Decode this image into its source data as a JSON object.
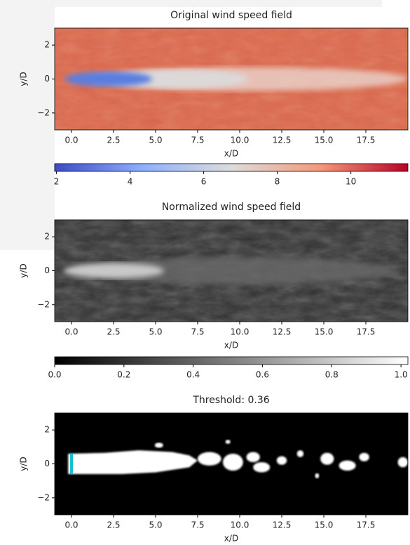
{
  "chart_data": [
    {
      "type": "image",
      "title": "Original wind speed field",
      "xlabel": "x/D",
      "ylabel": "y/D",
      "xlim": [
        -1,
        20
      ],
      "ylim": [
        -3,
        3
      ],
      "xticks": [
        {
          "value": 0,
          "label": "0.0"
        },
        {
          "value": 2.5,
          "label": "2.5"
        },
        {
          "value": 5,
          "label": "5.0"
        },
        {
          "value": 7.5,
          "label": "7.5"
        },
        {
          "value": 10,
          "label": "10.0"
        },
        {
          "value": 12.5,
          "label": "12.5"
        },
        {
          "value": 15,
          "label": "15.0"
        },
        {
          "value": 17.5,
          "label": "17.5"
        }
      ],
      "yticks": [
        {
          "value": 2,
          "label": "2"
        },
        {
          "value": 0,
          "label": "0"
        },
        {
          "value": -2,
          "label": "−2"
        }
      ],
      "colorbar": {
        "lim": [
          1.95,
          11.55
        ],
        "ticks": [
          2,
          4,
          6,
          8,
          10
        ],
        "colormap": [
          "#3b4cc0",
          "#8db0fe",
          "#dddcdc",
          "#f49a7b",
          "#b40426"
        ]
      }
    },
    {
      "type": "image",
      "title": "Normalized wind speed field",
      "xlabel": "x/D",
      "ylabel": "y/D",
      "xlim": [
        -1,
        20
      ],
      "ylim": [
        -3,
        3
      ],
      "xticks": [
        {
          "value": 0,
          "label": "0.0"
        },
        {
          "value": 2.5,
          "label": "2.5"
        },
        {
          "value": 5,
          "label": "5.0"
        },
        {
          "value": 7.5,
          "label": "7.5"
        },
        {
          "value": 10,
          "label": "10.0"
        },
        {
          "value": 12.5,
          "label": "12.5"
        },
        {
          "value": 15,
          "label": "15.0"
        },
        {
          "value": 17.5,
          "label": "17.5"
        }
      ],
      "yticks": [
        {
          "value": 2,
          "label": "2"
        },
        {
          "value": 0,
          "label": "0"
        },
        {
          "value": -2,
          "label": "−2"
        }
      ],
      "colorbar": {
        "lim": [
          0,
          1.02
        ],
        "ticks": [
          {
            "value": 0,
            "label": "0.0"
          },
          0.2,
          0.4,
          0.6,
          0.8,
          {
            "value": 1,
            "label": "1.0"
          }
        ],
        "colormap": [
          "#000000",
          "#ffffff"
        ]
      }
    },
    {
      "type": "image",
      "title": "Threshold: 0.36",
      "xlabel": "x/D",
      "ylabel": "y/D",
      "xlim": [
        -1,
        20
      ],
      "ylim": [
        -3,
        3
      ],
      "xticks": [
        {
          "value": 0,
          "label": "0.0"
        },
        {
          "value": 2.5,
          "label": "2.5"
        },
        {
          "value": 5,
          "label": "5.0"
        },
        {
          "value": 7.5,
          "label": "7.5"
        },
        {
          "value": 10,
          "label": "10.0"
        },
        {
          "value": 12.5,
          "label": "12.5"
        },
        {
          "value": 15,
          "label": "15.0"
        },
        {
          "value": 17.5,
          "label": "17.5"
        }
      ],
      "yticks": [
        {
          "value": 2,
          "label": "2"
        },
        {
          "value": 0,
          "label": "0"
        },
        {
          "value": -2,
          "label": "−2"
        }
      ],
      "marker": {
        "x": 0,
        "y": [
          -0.6,
          0.6
        ],
        "color": "#17becf"
      }
    }
  ]
}
